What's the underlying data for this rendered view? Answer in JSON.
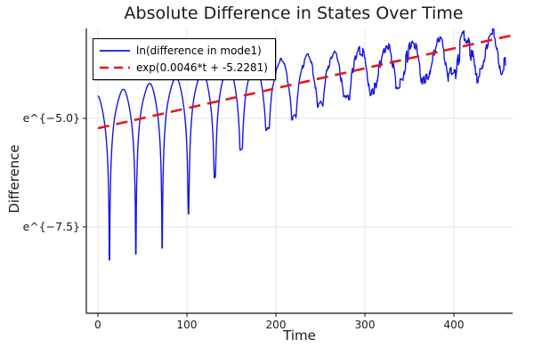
{
  "title": "Absolute Difference in States Over Time",
  "axes": {
    "x_label": "Time",
    "y_label": "Difference"
  },
  "legend": {
    "position": "top-left",
    "entries": [
      {
        "label": "ln(difference in mode1)",
        "color": "#1414e6",
        "dash": false
      },
      {
        "label": "exp(0.0046*t + -5.2281)",
        "color": "#e81717",
        "dash": true
      }
    ]
  },
  "colors": {
    "series_blue": "#1414e6",
    "trend_red": "#e81717",
    "grid": "#e4e4e4",
    "spine": "#111111",
    "tick_text": "#1a1a1a"
  },
  "chart_data": {
    "type": "line",
    "title": "Absolute Difference in States Over Time",
    "xlabel": "Time",
    "ylabel": "Difference",
    "grid": true,
    "legend_position": "top-left",
    "x_ticks": [
      0,
      100,
      200,
      300,
      400
    ],
    "y_ticks": [
      {
        "label": "e^{−5.0}",
        "ln_value": -5.0
      },
      {
        "label": "e^{−7.5}",
        "ln_value": -7.5
      }
    ],
    "xlim": [
      -13,
      466
    ],
    "ylim_ln": [
      -9.49,
      -2.93
    ],
    "series": [
      {
        "name": "ln(difference in mode1)",
        "color": "#1414e6",
        "style": "solid",
        "line_width": 1.4,
        "model": "env(t) + peak_offset(t) + max(ln|sin(pi*(t-first_dip_t)/period)|, -dip_depth[i]) + harmonic + late_noise",
        "t_start": 0,
        "t_end": 459,
        "t_step": 0.4,
        "env_slope": 0.0046,
        "env_intercept": -5.2281,
        "period": 29.6,
        "first_dip_t": 13.0,
        "peak_offset": {
          "base": 0.72,
          "decay_start": 140,
          "decay_rate": 0.002
        },
        "dip_depths_ln": [
          4.9,
          4.1,
          4.7,
          3.2,
          2.5,
          1.95,
          1.55,
          1.35,
          1.15,
          1.05,
          0.95,
          0.9,
          0.9,
          0.85,
          0.85,
          0.8
        ],
        "harmonic_amp_ln": 0.05,
        "noise_start_t": 170,
        "noise_full_t": 440,
        "noise_max_ln": 0.26
      },
      {
        "name": "exp(0.0046*t + -5.2281)",
        "color": "#e81717",
        "style": "dashed",
        "line_width": 2.6,
        "model": "ln_value = slope*t + intercept",
        "slope": 0.0046,
        "intercept": -5.2281,
        "t_start": 0,
        "t_end": 464
      }
    ]
  }
}
